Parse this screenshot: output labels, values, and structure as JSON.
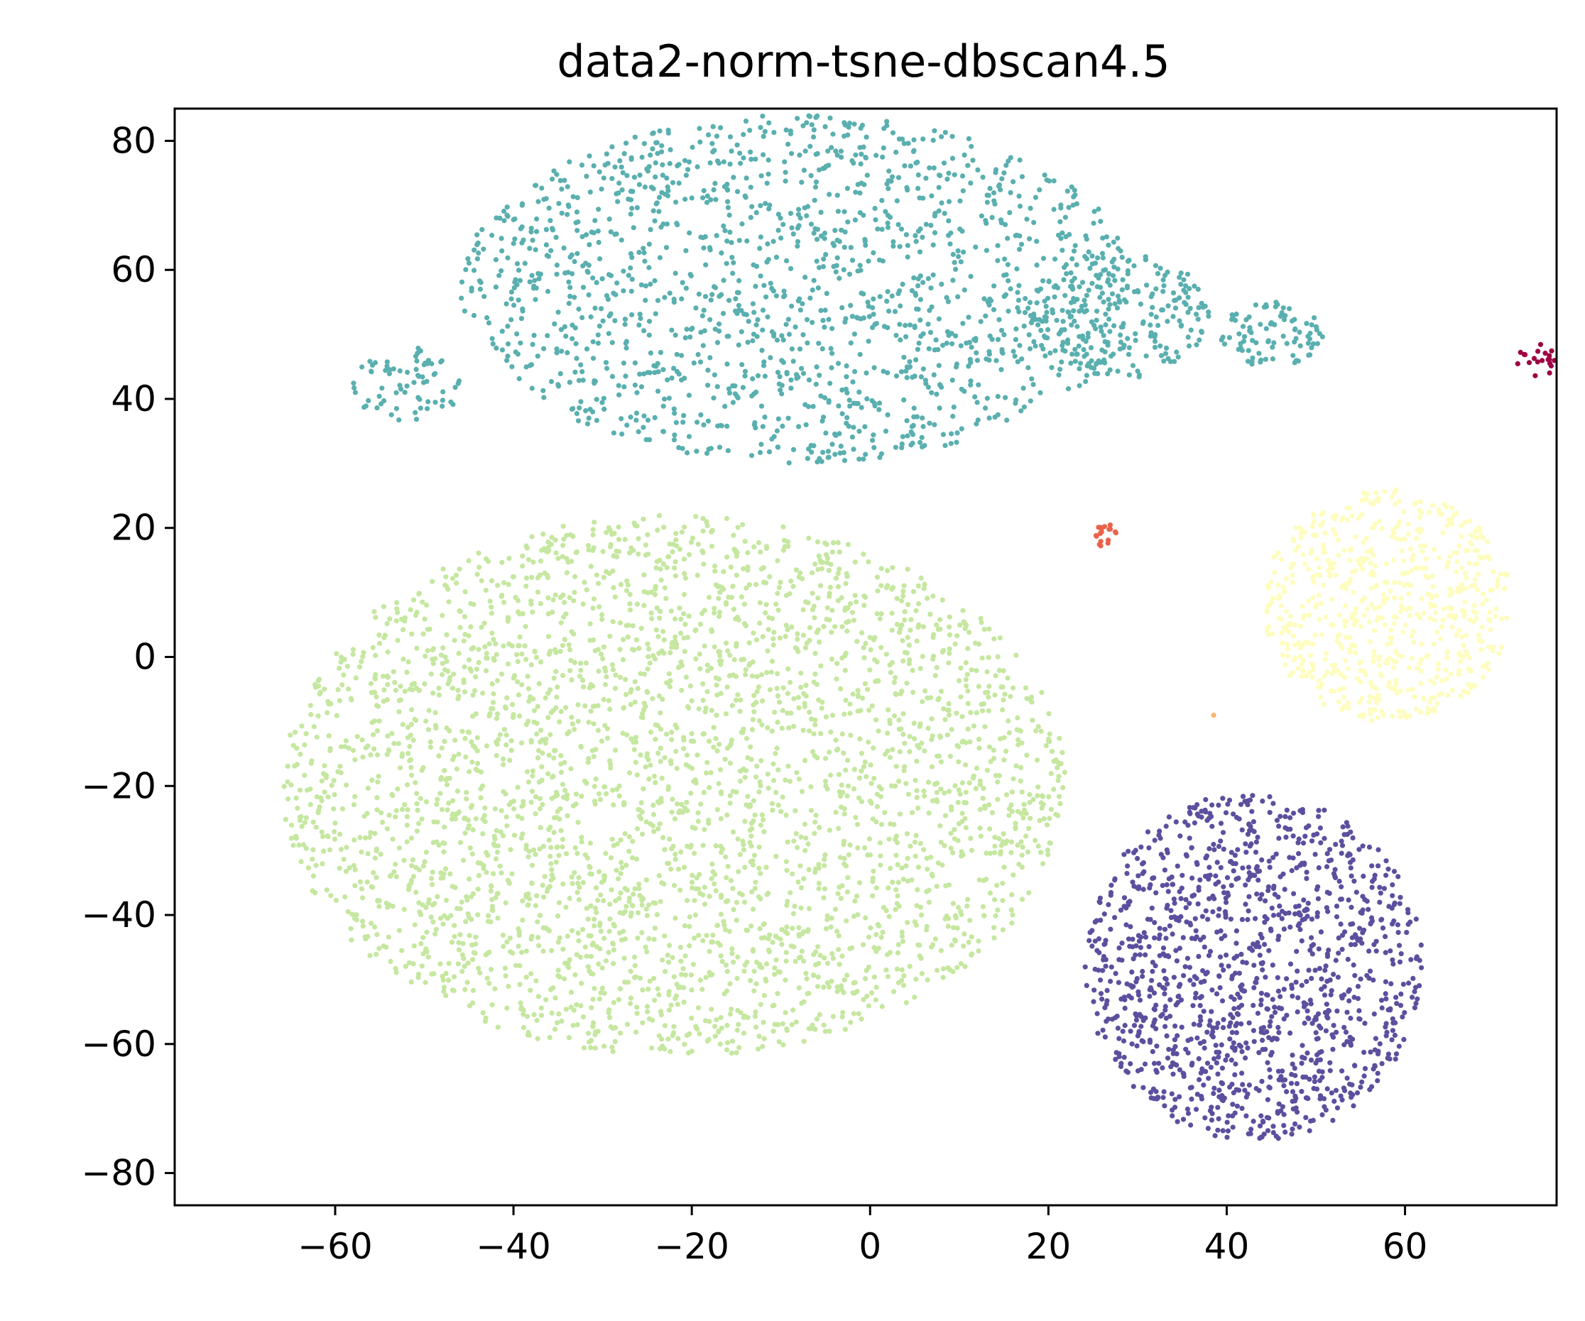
{
  "chart_data": {
    "type": "scatter",
    "title": "data2-norm-tsne-dbscan4.5",
    "xlabel": "",
    "ylabel": "",
    "xlim": [
      -78,
      77
    ],
    "ylim": [
      -85,
      85
    ],
    "x_ticks": [
      -60,
      -40,
      -20,
      0,
      20,
      40,
      60
    ],
    "y_ticks": [
      80,
      60,
      40,
      20,
      0,
      -20,
      -40,
      -60,
      -80
    ],
    "grid": false,
    "legend": "none",
    "point_count_note": "dense clusters of points",
    "clusters": [
      {
        "color": "#5aafaf",
        "regions": [
          {
            "center": [
              -8,
              57
            ],
            "rx": 38,
            "ry": 27,
            "n": 1500
          },
          {
            "center": [
              -52,
              42
            ],
            "rx": 6,
            "ry": 6,
            "n": 70
          },
          {
            "center": [
              28,
              53
            ],
            "rx": 10,
            "ry": 10,
            "n": 220
          },
          {
            "center": [
              45,
              50
            ],
            "rx": 6,
            "ry": 5,
            "n": 90
          }
        ]
      },
      {
        "color": "#c5e7a0",
        "regions": [
          {
            "center": [
              -22,
              -20
            ],
            "rx": 44,
            "ry": 42,
            "n": 3200
          }
        ]
      },
      {
        "color": "#fefdbf",
        "regions": [
          {
            "center": [
              58,
              8
            ],
            "rx": 14,
            "ry": 18,
            "n": 650
          }
        ]
      },
      {
        "color": "#5c4f9e",
        "regions": [
          {
            "center": [
              43,
              -48
            ],
            "rx": 19,
            "ry": 27,
            "n": 1250
          }
        ]
      },
      {
        "color": "#e8634a",
        "regions": [
          {
            "center": [
              26.5,
              19
            ],
            "rx": 1.2,
            "ry": 2.2,
            "n": 18
          }
        ]
      },
      {
        "color": "#fdb56b",
        "regions": [
          {
            "center": [
              38.5,
              -9
            ],
            "rx": 0.1,
            "ry": 0.1,
            "n": 1
          }
        ]
      },
      {
        "color": "#9e0142",
        "regions": [
          {
            "center": [
              75,
              46
            ],
            "rx": 2.5,
            "ry": 2.5,
            "n": 20
          }
        ]
      }
    ]
  }
}
